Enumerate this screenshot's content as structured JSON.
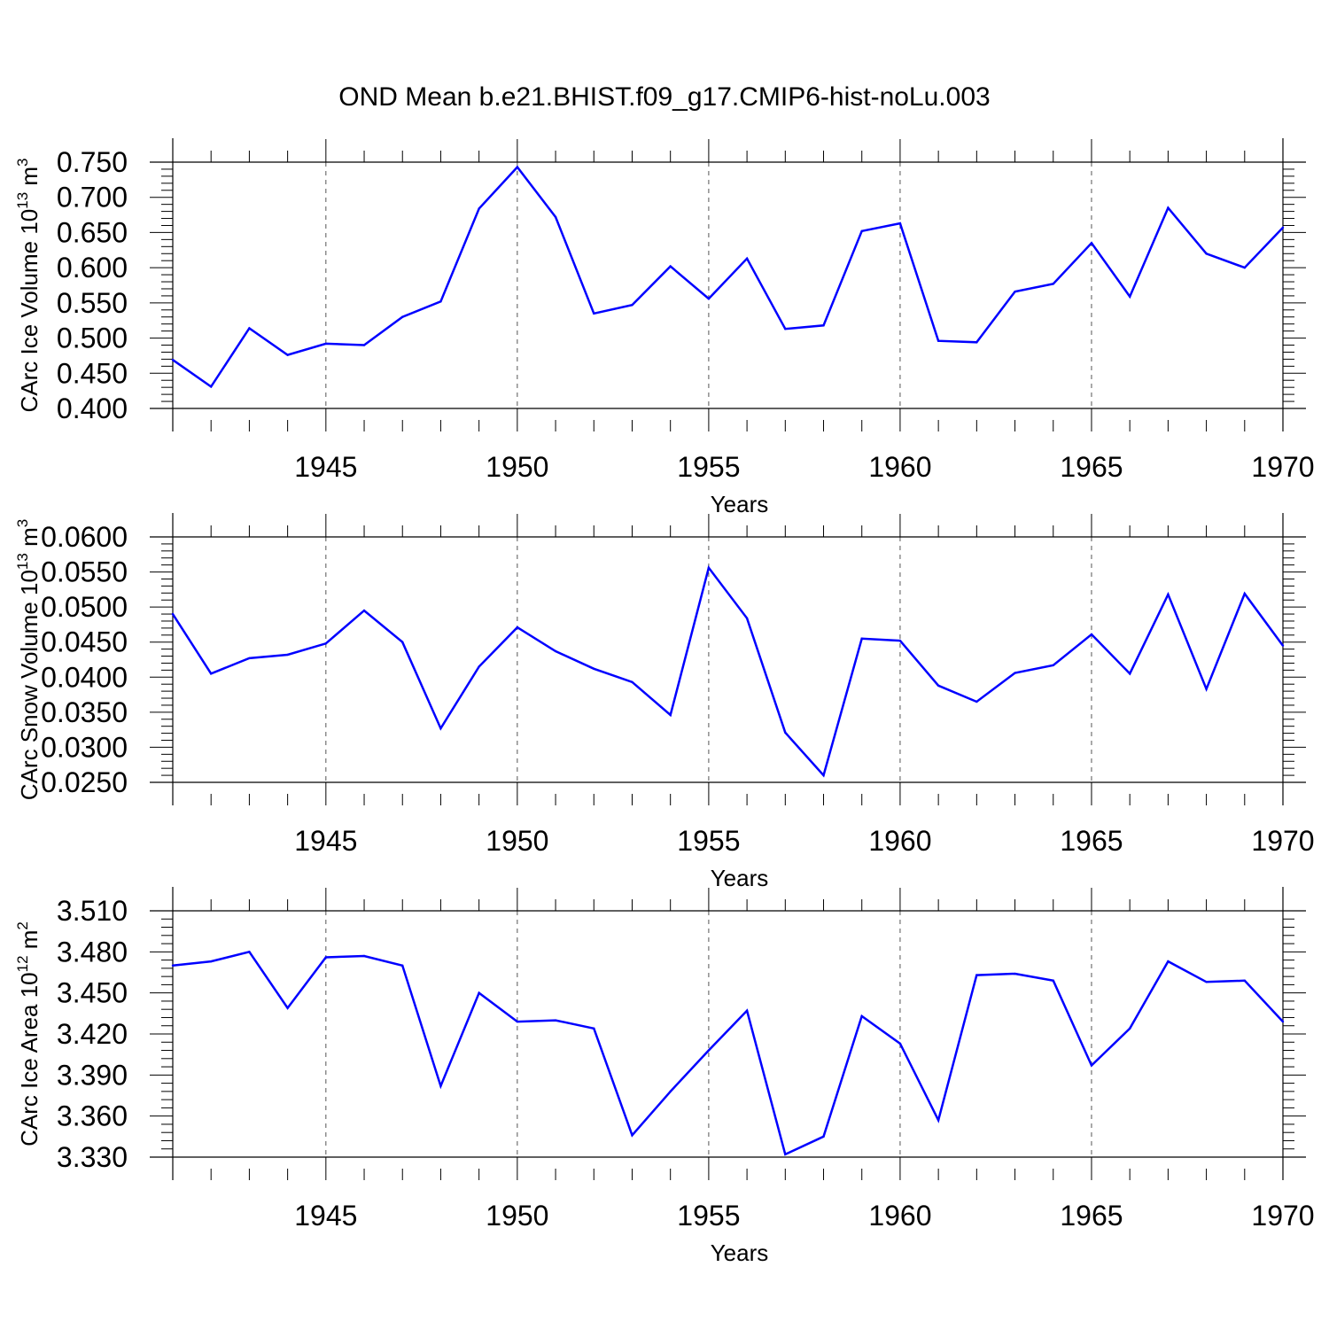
{
  "chart_title": "OND Mean b.e21.BHIST.f09_g17.CMIP6-hist-noLu.003",
  "colors": {
    "line": "#0000ff",
    "axis": "#000000",
    "grid": "#555555",
    "background": "#ffffff"
  },
  "chart_data": [
    {
      "type": "line",
      "name": "ice-volume",
      "title": "OND Mean b.e21.BHIST.f09_g17.CMIP6-hist-noLu.003",
      "xlabel": "Years",
      "ylabel": {
        "prefix": "CArc Ice Volume 10",
        "exp1": "13",
        "mid": " m",
        "exp2": "3"
      },
      "xlim": [
        1941,
        1970
      ],
      "ylim": [
        0.4,
        0.75
      ],
      "yticks": [
        "0.400",
        "0.450",
        "0.500",
        "0.550",
        "0.600",
        "0.650",
        "0.700",
        "0.750"
      ],
      "xticks": [
        "1945",
        "1950",
        "1955",
        "1960",
        "1965",
        "1970"
      ],
      "grid": "vertical dashed at major x ticks",
      "x": [
        1941,
        1942,
        1943,
        1944,
        1945,
        1946,
        1947,
        1948,
        1949,
        1950,
        1951,
        1952,
        1953,
        1954,
        1955,
        1956,
        1957,
        1958,
        1959,
        1960,
        1961,
        1962,
        1963,
        1964,
        1965,
        1966,
        1967,
        1968,
        1969,
        1970
      ],
      "values": [
        0.469,
        0.431,
        0.514,
        0.476,
        0.492,
        0.49,
        0.53,
        0.552,
        0.684,
        0.743,
        0.672,
        0.535,
        0.547,
        0.602,
        0.556,
        0.613,
        0.513,
        0.518,
        0.652,
        0.663,
        0.496,
        0.494,
        0.566,
        0.577,
        0.635,
        0.559,
        0.685,
        0.62,
        0.6,
        0.657
      ]
    },
    {
      "type": "line",
      "name": "snow-volume",
      "xlabel": "Years",
      "ylabel": {
        "prefix": "CArc Snow Volume 10",
        "exp1": "13",
        "mid": " m",
        "exp2": "3"
      },
      "xlim": [
        1941,
        1970
      ],
      "ylim": [
        0.025,
        0.06
      ],
      "yticks": [
        "0.0250",
        "0.0300",
        "0.0350",
        "0.0400",
        "0.0450",
        "0.0500",
        "0.0550",
        "0.0600"
      ],
      "xticks": [
        "1945",
        "1950",
        "1955",
        "1960",
        "1965",
        "1970"
      ],
      "grid": "vertical dashed at major x ticks",
      "x": [
        1941,
        1942,
        1943,
        1944,
        1945,
        1946,
        1947,
        1948,
        1949,
        1950,
        1951,
        1952,
        1953,
        1954,
        1955,
        1956,
        1957,
        1958,
        1959,
        1960,
        1961,
        1962,
        1963,
        1964,
        1965,
        1966,
        1967,
        1968,
        1969,
        1970
      ],
      "values": [
        0.049,
        0.0405,
        0.0427,
        0.0432,
        0.0448,
        0.0495,
        0.045,
        0.0327,
        0.0415,
        0.0471,
        0.0437,
        0.0412,
        0.0393,
        0.0346,
        0.0556,
        0.0484,
        0.0321,
        0.026,
        0.0455,
        0.0452,
        0.0388,
        0.0365,
        0.0406,
        0.0417,
        0.0461,
        0.0405,
        0.0518,
        0.0383,
        0.0519,
        0.0445
      ]
    },
    {
      "type": "line",
      "name": "ice-area",
      "xlabel": "Years",
      "ylabel": {
        "prefix": "CArc Ice Area 10",
        "exp1": "12",
        "mid": " m",
        "exp2": "2"
      },
      "xlim": [
        1941,
        1970
      ],
      "ylim": [
        3.33,
        3.51
      ],
      "yticks": [
        "3.330",
        "3.360",
        "3.390",
        "3.420",
        "3.450",
        "3.480",
        "3.510"
      ],
      "xticks": [
        "1945",
        "1950",
        "1955",
        "1960",
        "1965",
        "1970"
      ],
      "grid": "vertical dashed at major x ticks",
      "x": [
        1941,
        1942,
        1943,
        1944,
        1945,
        1946,
        1947,
        1948,
        1949,
        1950,
        1951,
        1952,
        1953,
        1954,
        1955,
        1956,
        1957,
        1958,
        1959,
        1960,
        1961,
        1962,
        1963,
        1964,
        1965,
        1966,
        1967,
        1968,
        1969,
        1970
      ],
      "values": [
        3.47,
        3.473,
        3.48,
        3.439,
        3.476,
        3.477,
        3.47,
        3.382,
        3.45,
        3.429,
        3.43,
        3.424,
        3.346,
        3.378,
        3.408,
        3.437,
        3.332,
        3.345,
        3.433,
        3.413,
        3.357,
        3.463,
        3.464,
        3.459,
        3.397,
        3.424,
        3.473,
        3.458,
        3.459,
        3.429
      ]
    }
  ]
}
